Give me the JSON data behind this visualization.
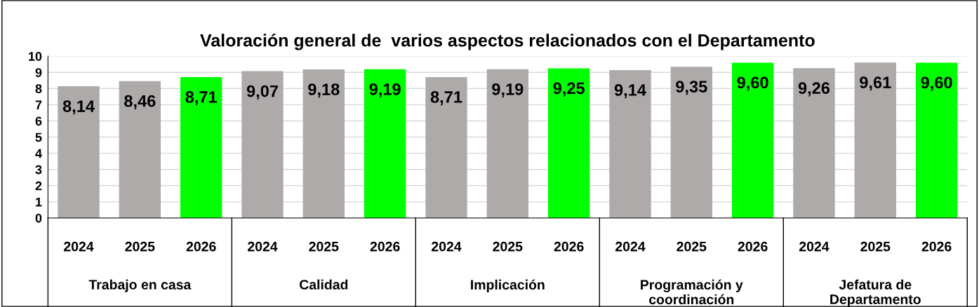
{
  "chart_data": {
    "type": "bar",
    "title": "Valoración general de  varios aspectos relacionados con el Departamento",
    "categories": [
      "2024",
      "2025",
      "2026",
      "2024",
      "2025",
      "2026",
      "2024",
      "2025",
      "2026",
      "2024",
      "2025",
      "2026",
      "2024",
      "2025",
      "2026"
    ],
    "values": [
      8.14,
      8.46,
      8.71,
      9.07,
      9.18,
      9.19,
      8.71,
      9.19,
      9.25,
      9.14,
      9.35,
      9.6,
      9.26,
      9.61,
      9.6
    ],
    "colors": [
      "#aeaaaa",
      "#aeaaaa",
      "#00ff00",
      "#aeaaaa",
      "#aeaaaa",
      "#00ff00",
      "#aeaaaa",
      "#aeaaaa",
      "#00ff00",
      "#aeaaaa",
      "#aeaaaa",
      "#00ff00",
      "#aeaaaa",
      "#aeaaaa",
      "#00ff00"
    ],
    "value_labels": [
      "8,14",
      "8,46",
      "8,71",
      "9,07",
      "9,18",
      "9,19",
      "8,71",
      "9,19",
      "9,25",
      "9,14",
      "9,35",
      "9,60",
      "9,26",
      "9,61",
      "9,60"
    ],
    "annotations": [
      "Trabajo en casa",
      "Calidad",
      "Implicación",
      "Programación y\ncoordinación",
      "Jefatura de\nDepartamento"
    ],
    "ylim": [
      0,
      10
    ],
    "yticks": [
      0,
      1,
      2,
      3,
      4,
      5,
      6,
      7,
      8,
      9,
      10
    ],
    "grid": "y"
  }
}
